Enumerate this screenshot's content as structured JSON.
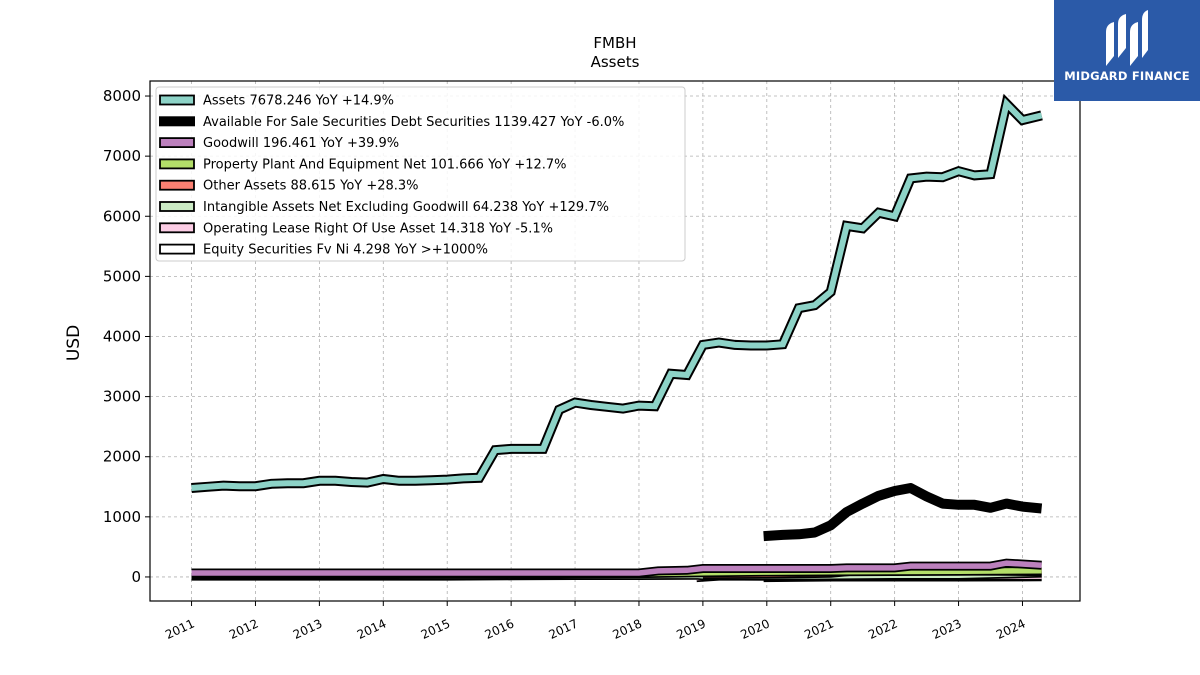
{
  "brand": {
    "name": "MIDGARD FINANCE",
    "icon": "midgard-logo-icon",
    "color": "#2b5aa8"
  },
  "chart_data": {
    "type": "line",
    "title": "FMBH",
    "subtitle": "Assets",
    "xlabel": "",
    "ylabel": "USD",
    "xlim": [
      2010.35,
      2024.9
    ],
    "ylim": [
      -400,
      8250
    ],
    "x_ticks": [
      2011,
      2012,
      2013,
      2014,
      2015,
      2016,
      2017,
      2018,
      2019,
      2020,
      2021,
      2022,
      2023,
      2024
    ],
    "x_tick_labels": [
      "2011",
      "2012",
      "2013",
      "2014",
      "2015",
      "2016",
      "2017",
      "2018",
      "2019",
      "2020",
      "2021",
      "2022",
      "2023",
      "2024"
    ],
    "y_ticks": [
      0,
      1000,
      2000,
      3000,
      4000,
      5000,
      6000,
      7000,
      8000
    ],
    "y_tick_labels": [
      "0",
      "1000",
      "2000",
      "3000",
      "4000",
      "5000",
      "6000",
      "7000",
      "8000"
    ],
    "grid": true,
    "legend_position": "top-left",
    "series": [
      {
        "name": "Assets  7678.246 YoY +14.9%",
        "color": "#8dd3c7",
        "style": "outlined",
        "points": [
          [
            2011.0,
            1480
          ],
          [
            2011.25,
            1500
          ],
          [
            2011.5,
            1520
          ],
          [
            2011.75,
            1510
          ],
          [
            2012.0,
            1510
          ],
          [
            2012.25,
            1550
          ],
          [
            2012.5,
            1560
          ],
          [
            2012.75,
            1560
          ],
          [
            2013.0,
            1600
          ],
          [
            2013.25,
            1600
          ],
          [
            2013.5,
            1580
          ],
          [
            2013.75,
            1570
          ],
          [
            2014.0,
            1630
          ],
          [
            2014.25,
            1600
          ],
          [
            2014.5,
            1600
          ],
          [
            2014.75,
            1610
          ],
          [
            2015.0,
            1620
          ],
          [
            2015.25,
            1640
          ],
          [
            2015.5,
            1650
          ],
          [
            2015.75,
            2110
          ],
          [
            2016.0,
            2130
          ],
          [
            2016.25,
            2130
          ],
          [
            2016.5,
            2130
          ],
          [
            2016.75,
            2780
          ],
          [
            2017.0,
            2900
          ],
          [
            2017.25,
            2860
          ],
          [
            2017.5,
            2830
          ],
          [
            2017.75,
            2800
          ],
          [
            2018.0,
            2850
          ],
          [
            2018.25,
            2840
          ],
          [
            2018.5,
            3380
          ],
          [
            2018.75,
            3360
          ],
          [
            2019.0,
            3860
          ],
          [
            2019.25,
            3900
          ],
          [
            2019.5,
            3860
          ],
          [
            2019.75,
            3850
          ],
          [
            2020.0,
            3850
          ],
          [
            2020.25,
            3870
          ],
          [
            2020.5,
            4470
          ],
          [
            2020.75,
            4520
          ],
          [
            2021.0,
            4740
          ],
          [
            2021.25,
            5840
          ],
          [
            2021.5,
            5800
          ],
          [
            2021.75,
            6060
          ],
          [
            2022.0,
            6000
          ],
          [
            2022.25,
            6630
          ],
          [
            2022.5,
            6660
          ],
          [
            2022.75,
            6650
          ],
          [
            2023.0,
            6750
          ],
          [
            2023.25,
            6680
          ],
          [
            2023.5,
            6700
          ],
          [
            2023.75,
            7870
          ],
          [
            2024.0,
            7600
          ],
          [
            2024.3,
            7678
          ]
        ]
      },
      {
        "name": "Available For Sale Securities Debt Securities  1139.427 YoY -6.0%",
        "color": "#000000",
        "style": "thick",
        "points": [
          [
            2019.95,
            680
          ],
          [
            2020.25,
            700
          ],
          [
            2020.5,
            710
          ],
          [
            2020.75,
            740
          ],
          [
            2021.0,
            860
          ],
          [
            2021.25,
            1080
          ],
          [
            2021.5,
            1220
          ],
          [
            2021.75,
            1350
          ],
          [
            2022.0,
            1430
          ],
          [
            2022.25,
            1480
          ],
          [
            2022.5,
            1340
          ],
          [
            2022.75,
            1220
          ],
          [
            2023.0,
            1200
          ],
          [
            2023.25,
            1200
          ],
          [
            2023.5,
            1150
          ],
          [
            2023.75,
            1220
          ],
          [
            2024.0,
            1170
          ],
          [
            2024.3,
            1139
          ]
        ]
      },
      {
        "name": "Goodwill  196.461 YoY +39.9%",
        "color": "#bc80bd",
        "style": "band",
        "points": [
          [
            2011.0,
            65
          ],
          [
            2018.0,
            65
          ],
          [
            2018.3,
            100
          ],
          [
            2018.75,
            110
          ],
          [
            2019.0,
            140
          ],
          [
            2021.0,
            140
          ],
          [
            2021.25,
            150
          ],
          [
            2022.0,
            150
          ],
          [
            2022.25,
            180
          ],
          [
            2023.5,
            180
          ],
          [
            2023.75,
            230
          ],
          [
            2024.3,
            196
          ]
        ]
      },
      {
        "name": "Property Plant And Equipment Net  101.666 YoY +12.7%",
        "color": "#b3de69",
        "style": "band",
        "points": [
          [
            2011.0,
            40
          ],
          [
            2016.0,
            42
          ],
          [
            2017.0,
            50
          ],
          [
            2018.0,
            55
          ],
          [
            2019.0,
            70
          ],
          [
            2020.0,
            80
          ],
          [
            2021.0,
            85
          ],
          [
            2022.0,
            90
          ],
          [
            2023.0,
            95
          ],
          [
            2024.3,
            102
          ]
        ]
      },
      {
        "name": "Other Assets  88.615 YoY +28.3%",
        "color": "#fb8072",
        "style": "band",
        "points": [
          [
            2019.0,
            40
          ],
          [
            2020.0,
            45
          ],
          [
            2021.0,
            60
          ],
          [
            2021.5,
            110
          ],
          [
            2022.0,
            110
          ],
          [
            2022.5,
            150
          ],
          [
            2022.75,
            170
          ],
          [
            2023.0,
            100
          ],
          [
            2024.3,
            89
          ]
        ]
      },
      {
        "name": "Intangible Assets Net Excluding Goodwill  64.238 YoY +129.7%",
        "color": "#ccebc5",
        "style": "band",
        "points": [
          [
            2011.0,
            15
          ],
          [
            2015.0,
            15
          ],
          [
            2016.0,
            20
          ],
          [
            2017.0,
            25
          ],
          [
            2018.0,
            25
          ],
          [
            2018.9,
            30
          ],
          [
            2019.0,
            20
          ],
          [
            2020.0,
            15
          ],
          [
            2021.0,
            20
          ],
          [
            2022.0,
            30
          ],
          [
            2023.0,
            28
          ],
          [
            2024.3,
            64
          ]
        ]
      },
      {
        "name": "Operating Lease Right Of Use Asset  14.318 YoY -5.1%",
        "color": "#fccde5",
        "style": "band",
        "points": [
          [
            2018.9,
            -10
          ],
          [
            2019.25,
            15
          ],
          [
            2020.0,
            15
          ],
          [
            2021.0,
            15
          ],
          [
            2022.0,
            15
          ],
          [
            2023.0,
            15
          ],
          [
            2024.3,
            14
          ]
        ]
      },
      {
        "name": "Equity Securities Fv Ni  4.298 YoY >+1000%",
        "color": "#ffffff",
        "style": "band",
        "points": [
          [
            2019.95,
            -10
          ],
          [
            2021.0,
            0
          ],
          [
            2022.0,
            0
          ],
          [
            2023.0,
            0
          ],
          [
            2024.0,
            1
          ],
          [
            2024.3,
            4
          ]
        ]
      }
    ]
  }
}
